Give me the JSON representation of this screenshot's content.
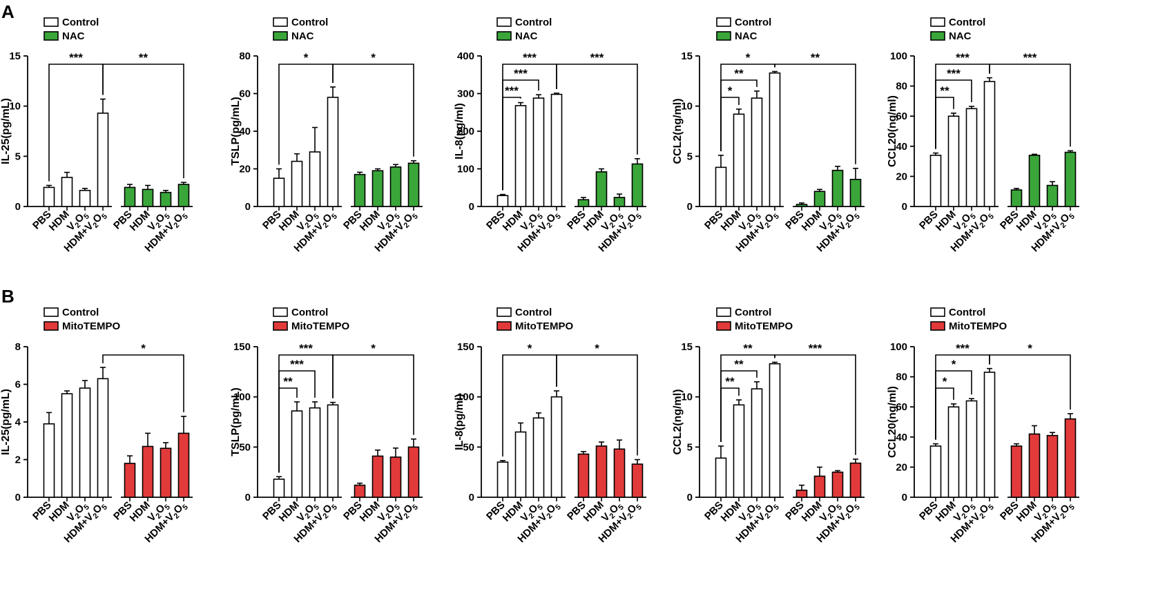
{
  "panels": [
    {
      "label": "A",
      "legend": [
        "Control",
        "NAC"
      ],
      "colors": [
        "#ffffff",
        "#3aa63a"
      ],
      "categories": [
        "PBS",
        "HDM",
        "V2O5",
        "HDM+V2O5"
      ],
      "category_labels": [
        {
          "main": "PBS"
        },
        {
          "main": "HDM"
        },
        {
          "main": "V",
          "sub1": "2",
          "mid": "O",
          "sub2": "5"
        },
        {
          "main": "HDM+V",
          "sub1": "2",
          "mid": "O",
          "sub2": "5"
        }
      ]
    },
    {
      "label": "B",
      "legend": [
        "Control",
        "MitoTEMPO"
      ],
      "colors": [
        "#ffffff",
        "#e23a3a"
      ],
      "categories": [
        "PBS",
        "HDM",
        "V2O5",
        "HDM+V2O5"
      ],
      "category_labels": [
        {
          "main": "PBS"
        },
        {
          "main": "HDM"
        },
        {
          "main": "V",
          "sub1": "2",
          "mid": "O",
          "sub2": "5"
        },
        {
          "main": "HDM+V",
          "sub1": "2",
          "mid": "O",
          "sub2": "5"
        }
      ]
    }
  ],
  "chart_data": [
    {
      "panel": "A",
      "type": "bar",
      "ylabel": "IL-25(pg/mL)",
      "ylim": [
        0,
        15
      ],
      "yticks": [
        0,
        5,
        10,
        15
      ],
      "series": [
        {
          "name": "Control",
          "values": [
            1.9,
            2.9,
            1.6,
            9.3
          ],
          "errors": [
            0.2,
            0.5,
            0.2,
            1.4
          ]
        },
        {
          "name": "NAC",
          "values": [
            1.9,
            1.7,
            1.4,
            2.2
          ],
          "errors": [
            0.3,
            0.4,
            0.2,
            0.2
          ]
        }
      ],
      "brackets": [
        {
          "from": [
            0,
            0
          ],
          "to": [
            0,
            3
          ],
          "label": "***",
          "level": 0
        },
        {
          "from": [
            0,
            3
          ],
          "to": [
            1,
            3
          ],
          "label": "**",
          "level": 0
        }
      ]
    },
    {
      "panel": "A",
      "type": "bar",
      "ylabel": "TSLP(pg/mL)",
      "ylim": [
        0,
        80
      ],
      "yticks": [
        0,
        20,
        40,
        60,
        80
      ],
      "series": [
        {
          "name": "Control",
          "values": [
            15,
            24,
            29,
            58
          ],
          "errors": [
            5,
            4,
            13,
            5.5
          ]
        },
        {
          "name": "NAC",
          "values": [
            17,
            19,
            21,
            23
          ],
          "errors": [
            1.2,
            1,
            1.3,
            1.3
          ]
        }
      ],
      "brackets": [
        {
          "from": [
            0,
            0
          ],
          "to": [
            0,
            3
          ],
          "label": "*",
          "level": 0
        },
        {
          "from": [
            0,
            3
          ],
          "to": [
            1,
            3
          ],
          "label": "*",
          "level": 0
        }
      ]
    },
    {
      "panel": "A",
      "type": "bar",
      "ylabel": "IL-8(pg/ml)",
      "ylim": [
        0,
        400
      ],
      "yticks": [
        0,
        100,
        200,
        300,
        400
      ],
      "series": [
        {
          "name": "Control",
          "values": [
            29,
            268,
            288,
            298
          ],
          "errors": [
            3,
            8,
            9,
            3
          ]
        },
        {
          "name": "NAC",
          "values": [
            18,
            92,
            24,
            113
          ],
          "errors": [
            6,
            8,
            9,
            14
          ]
        }
      ],
      "brackets": [
        {
          "from": [
            0,
            0
          ],
          "to": [
            0,
            1
          ],
          "label": "***",
          "level": 2
        },
        {
          "from": [
            0,
            0
          ],
          "to": [
            0,
            2
          ],
          "label": "***",
          "level": 1
        },
        {
          "from": [
            0,
            0
          ],
          "to": [
            0,
            3
          ],
          "label": "***",
          "level": 0
        },
        {
          "from": [
            0,
            3
          ],
          "to": [
            1,
            3
          ],
          "label": "***",
          "level": 0
        }
      ]
    },
    {
      "panel": "A",
      "type": "bar",
      "ylabel": "CCL2(ng/ml)",
      "ylim": [
        0,
        15
      ],
      "yticks": [
        0,
        5,
        10,
        15
      ],
      "series": [
        {
          "name": "Control",
          "values": [
            3.9,
            9.2,
            10.8,
            13.3
          ],
          "errors": [
            1.2,
            0.5,
            0.7,
            0.15
          ]
        },
        {
          "name": "NAC",
          "values": [
            0.2,
            1.5,
            3.6,
            2.7
          ],
          "errors": [
            0.15,
            0.2,
            0.4,
            1.1
          ]
        }
      ],
      "brackets": [
        {
          "from": [
            0,
            0
          ],
          "to": [
            0,
            1
          ],
          "label": "*",
          "level": 2
        },
        {
          "from": [
            0,
            0
          ],
          "to": [
            0,
            2
          ],
          "label": "**",
          "level": 1
        },
        {
          "from": [
            0,
            0
          ],
          "to": [
            0,
            3
          ],
          "label": "*",
          "level": 0
        },
        {
          "from": [
            0,
            3
          ],
          "to": [
            1,
            3
          ],
          "label": "**",
          "level": 0
        }
      ]
    },
    {
      "panel": "A",
      "type": "bar",
      "ylabel": "CCL20(ng/ml)",
      "ylim": [
        0,
        100
      ],
      "yticks": [
        0,
        20,
        40,
        60,
        80,
        100
      ],
      "series": [
        {
          "name": "Control",
          "values": [
            34,
            60,
            65,
            83
          ],
          "errors": [
            1.5,
            2,
            1.5,
            2.5
          ]
        },
        {
          "name": "NAC",
          "values": [
            11,
            34,
            14,
            36
          ],
          "errors": [
            1,
            0.7,
            2.5,
            1
          ]
        }
      ],
      "brackets": [
        {
          "from": [
            0,
            0
          ],
          "to": [
            0,
            1
          ],
          "label": "**",
          "level": 2
        },
        {
          "from": [
            0,
            0
          ],
          "to": [
            0,
            2
          ],
          "label": "***",
          "level": 1
        },
        {
          "from": [
            0,
            0
          ],
          "to": [
            0,
            3
          ],
          "label": "***",
          "level": 0
        },
        {
          "from": [
            0,
            3
          ],
          "to": [
            1,
            3
          ],
          "label": "***",
          "level": 0
        }
      ]
    },
    {
      "panel": "B",
      "type": "bar",
      "ylabel": "IL-25(pg/mL)",
      "ylim": [
        0,
        8
      ],
      "yticks": [
        0,
        2,
        4,
        6,
        8
      ],
      "series": [
        {
          "name": "Control",
          "values": [
            3.9,
            5.5,
            5.8,
            6.3
          ],
          "errors": [
            0.6,
            0.15,
            0.4,
            0.6
          ]
        },
        {
          "name": "MitoTEMPO",
          "values": [
            1.8,
            2.7,
            2.6,
            3.4
          ],
          "errors": [
            0.4,
            0.7,
            0.3,
            0.9
          ]
        }
      ],
      "brackets": [
        {
          "from": [
            0,
            3
          ],
          "to": [
            1,
            3
          ],
          "label": "*",
          "level": 0
        }
      ]
    },
    {
      "panel": "B",
      "type": "bar",
      "ylabel": "TSLP(pg/mL)",
      "ylim": [
        0,
        150
      ],
      "yticks": [
        0,
        50,
        100,
        150
      ],
      "series": [
        {
          "name": "Control",
          "values": [
            18,
            86,
            89,
            92
          ],
          "errors": [
            2.5,
            9,
            6,
            2.5
          ]
        },
        {
          "name": "MitoTEMPO",
          "values": [
            12,
            41,
            40,
            50
          ],
          "errors": [
            2,
            6,
            9,
            8
          ]
        }
      ],
      "brackets": [
        {
          "from": [
            0,
            0
          ],
          "to": [
            0,
            1
          ],
          "label": "**",
          "level": 2
        },
        {
          "from": [
            0,
            0
          ],
          "to": [
            0,
            2
          ],
          "label": "***",
          "level": 1
        },
        {
          "from": [
            0,
            0
          ],
          "to": [
            0,
            3
          ],
          "label": "***",
          "level": 0
        },
        {
          "from": [
            0,
            3
          ],
          "to": [
            1,
            3
          ],
          "label": "*",
          "level": 0
        }
      ]
    },
    {
      "panel": "B",
      "type": "bar",
      "ylabel": "IL-8(pg/ml)",
      "ylim": [
        0,
        150
      ],
      "yticks": [
        0,
        50,
        100,
        150
      ],
      "series": [
        {
          "name": "Control",
          "values": [
            35,
            65,
            79,
            100
          ],
          "errors": [
            1.5,
            9,
            5,
            6
          ]
        },
        {
          "name": "MitoTEMPO",
          "values": [
            43,
            51,
            48,
            33
          ],
          "errors": [
            2.5,
            4,
            9,
            4.5
          ]
        }
      ],
      "brackets": [
        {
          "from": [
            0,
            0
          ],
          "to": [
            0,
            3
          ],
          "label": "*",
          "level": 0
        },
        {
          "from": [
            0,
            3
          ],
          "to": [
            1,
            3
          ],
          "label": "*",
          "level": 0
        }
      ]
    },
    {
      "panel": "B",
      "type": "bar",
      "ylabel": "CCL2(ng/ml)",
      "ylim": [
        0,
        15
      ],
      "yticks": [
        0,
        5,
        10,
        15
      ],
      "series": [
        {
          "name": "Control",
          "values": [
            3.9,
            9.2,
            10.8,
            13.3
          ],
          "errors": [
            1.2,
            0.5,
            0.7,
            0.15
          ]
        },
        {
          "name": "MitoTEMPO",
          "values": [
            0.7,
            2.1,
            2.5,
            3.4
          ],
          "errors": [
            0.5,
            0.9,
            0.15,
            0.4
          ]
        }
      ],
      "brackets": [
        {
          "from": [
            0,
            0
          ],
          "to": [
            0,
            1
          ],
          "label": "**",
          "level": 2
        },
        {
          "from": [
            0,
            0
          ],
          "to": [
            0,
            2
          ],
          "label": "**",
          "level": 1
        },
        {
          "from": [
            0,
            0
          ],
          "to": [
            0,
            3
          ],
          "label": "**",
          "level": 0
        },
        {
          "from": [
            0,
            3
          ],
          "to": [
            1,
            3
          ],
          "label": "***",
          "level": 0
        }
      ]
    },
    {
      "panel": "B",
      "type": "bar",
      "ylabel": "CCL20(ng/ml)",
      "ylim": [
        0,
        100
      ],
      "yticks": [
        0,
        20,
        40,
        60,
        80,
        100
      ],
      "series": [
        {
          "name": "Control",
          "values": [
            34,
            60,
            64,
            83
          ],
          "errors": [
            1.5,
            2,
            1.5,
            2.5
          ]
        },
        {
          "name": "MitoTEMPO",
          "values": [
            34,
            42,
            41,
            52
          ],
          "errors": [
            1.5,
            5.5,
            2,
            3.5
          ]
        }
      ],
      "brackets": [
        {
          "from": [
            0,
            0
          ],
          "to": [
            0,
            1
          ],
          "label": "*",
          "level": 2
        },
        {
          "from": [
            0,
            0
          ],
          "to": [
            0,
            2
          ],
          "label": "*",
          "level": 1
        },
        {
          "from": [
            0,
            0
          ],
          "to": [
            0,
            3
          ],
          "label": "***",
          "level": 0
        },
        {
          "from": [
            0,
            3
          ],
          "to": [
            1,
            3
          ],
          "label": "*",
          "level": 0
        }
      ]
    }
  ]
}
